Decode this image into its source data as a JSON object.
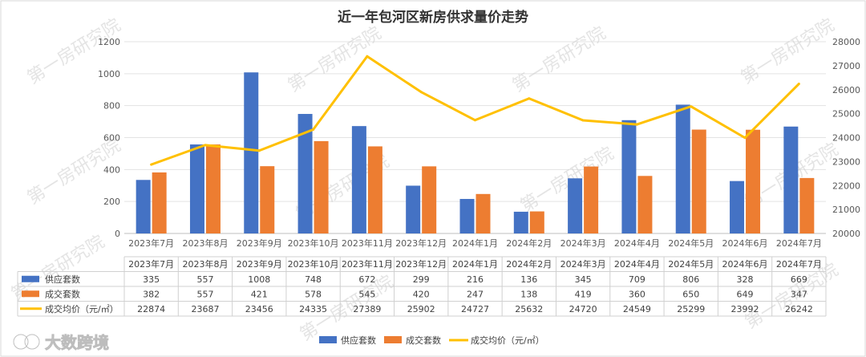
{
  "chart_data": {
    "type": "bar",
    "title": "近一年包河区新房供求量价走势",
    "categories": [
      "2023年7月",
      "2023年8月",
      "2023年9月",
      "2023年10月",
      "2023年11月",
      "2023年12月",
      "2024年1月",
      "2024年2月",
      "2024年3月",
      "2024年4月",
      "2024年5月",
      "2024年6月",
      "2024年7月"
    ],
    "series": [
      {
        "name": "供应套数",
        "kind": "bar",
        "axis": "left",
        "color": "#4472C4",
        "values": [
          335,
          557,
          1008,
          748,
          672,
          299,
          216,
          136,
          345,
          709,
          806,
          328,
          669
        ]
      },
      {
        "name": "成交套数",
        "kind": "bar",
        "axis": "left",
        "color": "#ED7D31",
        "values": [
          382,
          557,
          421,
          578,
          545,
          420,
          247,
          138,
          419,
          360,
          650,
          649,
          347
        ]
      },
      {
        "name": "成交均价（元/㎡）",
        "kind": "line",
        "axis": "right",
        "color": "#FFC000",
        "values": [
          22874,
          23687,
          23456,
          24335,
          27389,
          25902,
          24727,
          25632,
          24720,
          24549,
          25299,
          23992,
          26242
        ]
      }
    ],
    "y_left": {
      "min": 0,
      "max": 1200,
      "ticks": [
        0,
        200,
        400,
        600,
        800,
        1000,
        1200
      ]
    },
    "y_right": {
      "min": 20000,
      "max": 28000,
      "ticks": [
        20000,
        21000,
        22000,
        23000,
        24000,
        25000,
        26000,
        27000,
        28000
      ]
    },
    "legend": {
      "position": "bottom",
      "labels": [
        "供应套数",
        "成交套数",
        "成交均价（元/㎡）"
      ]
    },
    "grid": true,
    "data_table": true
  },
  "watermark": "第一房研究院",
  "logo": {
    "text": "大数跨境",
    "icon": "logo-icon"
  }
}
